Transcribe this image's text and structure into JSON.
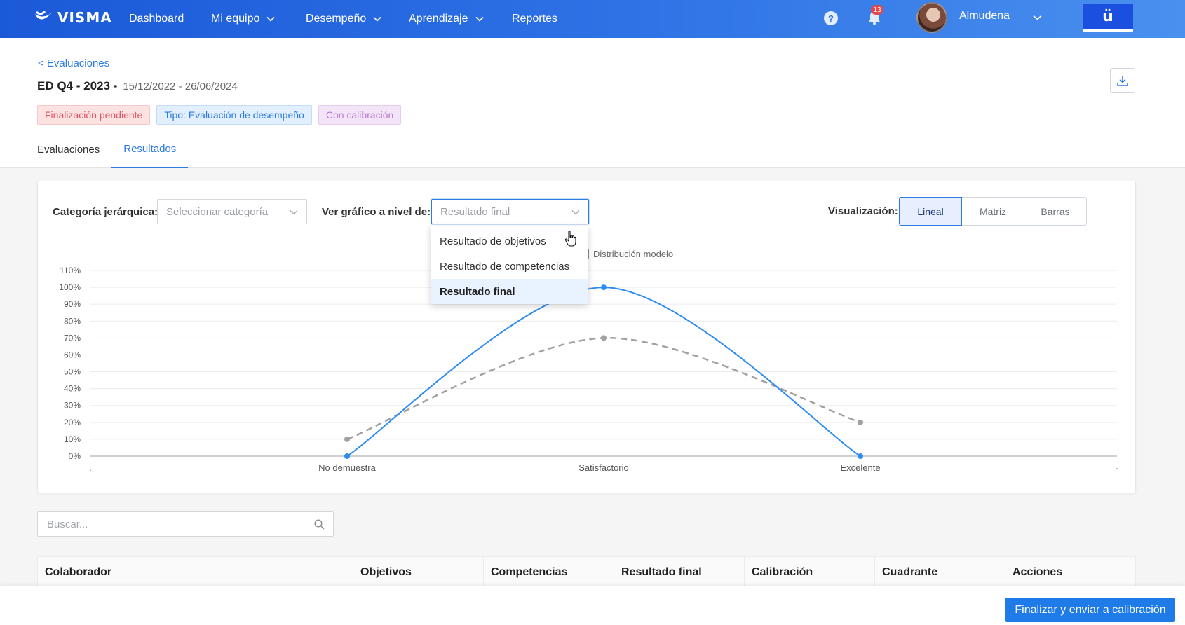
{
  "nav": {
    "brand": "VISMA",
    "items": [
      {
        "label": "Dashboard",
        "has_menu": false
      },
      {
        "label": "Mi equipo",
        "has_menu": true
      },
      {
        "label": "Desempeño",
        "has_menu": true
      },
      {
        "label": "Aprendizaje",
        "has_menu": true
      },
      {
        "label": "Reportes",
        "has_menu": false
      }
    ],
    "help_label": "?",
    "notifications_count": "13",
    "user_name": "Almudena",
    "app_switcher_label": "ü"
  },
  "header": {
    "breadcrumb": "< Evaluaciones",
    "title": "ED Q4 - 2023 -",
    "dates": "15/12/2022 - 26/06/2024",
    "badges": [
      {
        "label": "Finalización pendiente",
        "color": "#e0566a"
      },
      {
        "label": "Tipo: Evaluación de desempeño",
        "color": "#2d7be2"
      },
      {
        "label": "Con calibración",
        "color": "#b87ad2"
      }
    ],
    "tabs": [
      {
        "label": "Evaluaciones",
        "active": false
      },
      {
        "label": "Resultados",
        "active": true
      }
    ]
  },
  "filters": {
    "category_label": "Categoría jerárquica:",
    "category_placeholder": "Seleccionar categoría",
    "level_label": "Ver gráfico a nivel de:",
    "level_value": "Resultado final",
    "level_options": [
      {
        "label": "Resultado de objetivos",
        "selected": false
      },
      {
        "label": "Resultado de competencias",
        "selected": false
      },
      {
        "label": "Resultado final",
        "selected": true
      }
    ],
    "viz_label": "Visualización:",
    "viz_options": [
      {
        "label": "Lineal",
        "active": true
      },
      {
        "label": "Matriz",
        "active": false
      },
      {
        "label": "Barras",
        "active": false
      }
    ]
  },
  "chart_data": {
    "type": "line",
    "categories": [
      "No demuestra",
      "Satisfactorio",
      "Excelente"
    ],
    "x_edge_labels": [
      ".",
      "-"
    ],
    "y_ticks": [
      "0%",
      "10%",
      "20%",
      "30%",
      "40%",
      "50%",
      "60%",
      "70%",
      "80%",
      "90%",
      "100%",
      "110%"
    ],
    "ylim": [
      0,
      110
    ],
    "grid": true,
    "legend_position": "top-center",
    "series": [
      {
        "name": "",
        "values": [
          0,
          100,
          0
        ],
        "color": "#2d8cf0",
        "style": "solid"
      },
      {
        "name": "Distribución modelo",
        "values": [
          10,
          70,
          20
        ],
        "color": "#a0a0a0",
        "style": "dashed"
      }
    ]
  },
  "search": {
    "placeholder": "Buscar..."
  },
  "table": {
    "columns": [
      "Colaborador",
      "Objetivos",
      "Competencias",
      "Resultado final",
      "Calibración",
      "Cuadrante",
      "Acciones"
    ]
  },
  "footer": {
    "primary_label": "Finalizar y enviar a calibración"
  },
  "colors": {
    "accent": "#2d7be2",
    "nav": "#2f73e6",
    "primary_button": "#1e7be8"
  }
}
